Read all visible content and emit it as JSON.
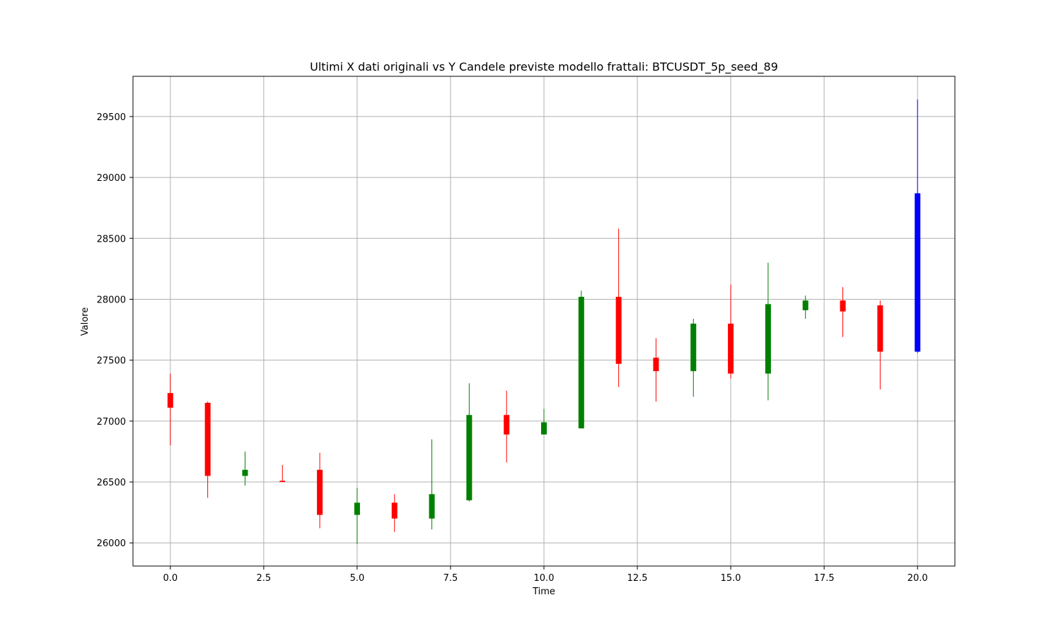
{
  "chart_data": {
    "type": "candlestick",
    "title": "Ultimi X dati originali vs Y Candele previste modello frattali: BTCUSDT_5p_seed_89",
    "xlabel": "Time",
    "ylabel": "Valore",
    "xlim": [
      -1.0,
      21.0
    ],
    "ylim": [
      25810,
      29830
    ],
    "x_ticks": [
      0.0,
      2.5,
      5.0,
      7.5,
      10.0,
      12.5,
      15.0,
      17.5,
      20.0
    ],
    "x_tick_labels": [
      "0.0",
      "2.5",
      "5.0",
      "7.5",
      "10.0",
      "12.5",
      "15.0",
      "17.5",
      "20.0"
    ],
    "y_ticks": [
      26000,
      26500,
      27000,
      27500,
      28000,
      28500,
      29000,
      29500
    ],
    "y_tick_labels": [
      "26000",
      "26500",
      "27000",
      "27500",
      "28000",
      "28500",
      "29000",
      "29500"
    ],
    "grid": true,
    "colors": {
      "up": "#008000",
      "down": "#ff0000",
      "predicted": "#0000ff",
      "grid": "#b0b0b0",
      "axes": "#000000"
    },
    "candles": [
      {
        "x": 0,
        "open": 27230,
        "high": 27390,
        "low": 26800,
        "close": 27110,
        "kind": "down"
      },
      {
        "x": 1,
        "open": 27150,
        "high": 27160,
        "low": 26370,
        "close": 26550,
        "kind": "down"
      },
      {
        "x": 2,
        "open": 26550,
        "high": 26750,
        "low": 26470,
        "close": 26600,
        "kind": "up"
      },
      {
        "x": 3,
        "open": 26510,
        "high": 26640,
        "low": 26500,
        "close": 26500,
        "kind": "down"
      },
      {
        "x": 4,
        "open": 26600,
        "high": 26740,
        "low": 26120,
        "close": 26230,
        "kind": "down"
      },
      {
        "x": 5,
        "open": 26230,
        "high": 26450,
        "low": 25990,
        "close": 26330,
        "kind": "up"
      },
      {
        "x": 6,
        "open": 26330,
        "high": 26400,
        "low": 26090,
        "close": 26200,
        "kind": "down"
      },
      {
        "x": 7,
        "open": 26200,
        "high": 26850,
        "low": 26110,
        "close": 26400,
        "kind": "up"
      },
      {
        "x": 8,
        "open": 26350,
        "high": 27310,
        "low": 26340,
        "close": 27050,
        "kind": "up"
      },
      {
        "x": 9,
        "open": 27050,
        "high": 27250,
        "low": 26660,
        "close": 26890,
        "kind": "down"
      },
      {
        "x": 10,
        "open": 26890,
        "high": 27100,
        "low": 26890,
        "close": 26990,
        "kind": "up"
      },
      {
        "x": 11,
        "open": 26940,
        "high": 28070,
        "low": 26940,
        "close": 28020,
        "kind": "up"
      },
      {
        "x": 12,
        "open": 28020,
        "high": 28580,
        "low": 27280,
        "close": 27470,
        "kind": "down"
      },
      {
        "x": 13,
        "open": 27520,
        "high": 27680,
        "low": 27160,
        "close": 27410,
        "kind": "down"
      },
      {
        "x": 14,
        "open": 27410,
        "high": 27840,
        "low": 27200,
        "close": 27800,
        "kind": "up"
      },
      {
        "x": 15,
        "open": 27800,
        "high": 28120,
        "low": 27350,
        "close": 27390,
        "kind": "down"
      },
      {
        "x": 16,
        "open": 27390,
        "high": 28300,
        "low": 27170,
        "close": 27960,
        "kind": "up"
      },
      {
        "x": 17,
        "open": 27910,
        "high": 28030,
        "low": 27840,
        "close": 27990,
        "kind": "up"
      },
      {
        "x": 18,
        "open": 27990,
        "high": 28100,
        "low": 27690,
        "close": 27900,
        "kind": "down"
      },
      {
        "x": 19,
        "open": 27950,
        "high": 27990,
        "low": 27260,
        "close": 27570,
        "kind": "down"
      },
      {
        "x": 20,
        "open": 27570,
        "high": 29640,
        "low": 27560,
        "close": 28870,
        "kind": "predicted"
      }
    ]
  }
}
